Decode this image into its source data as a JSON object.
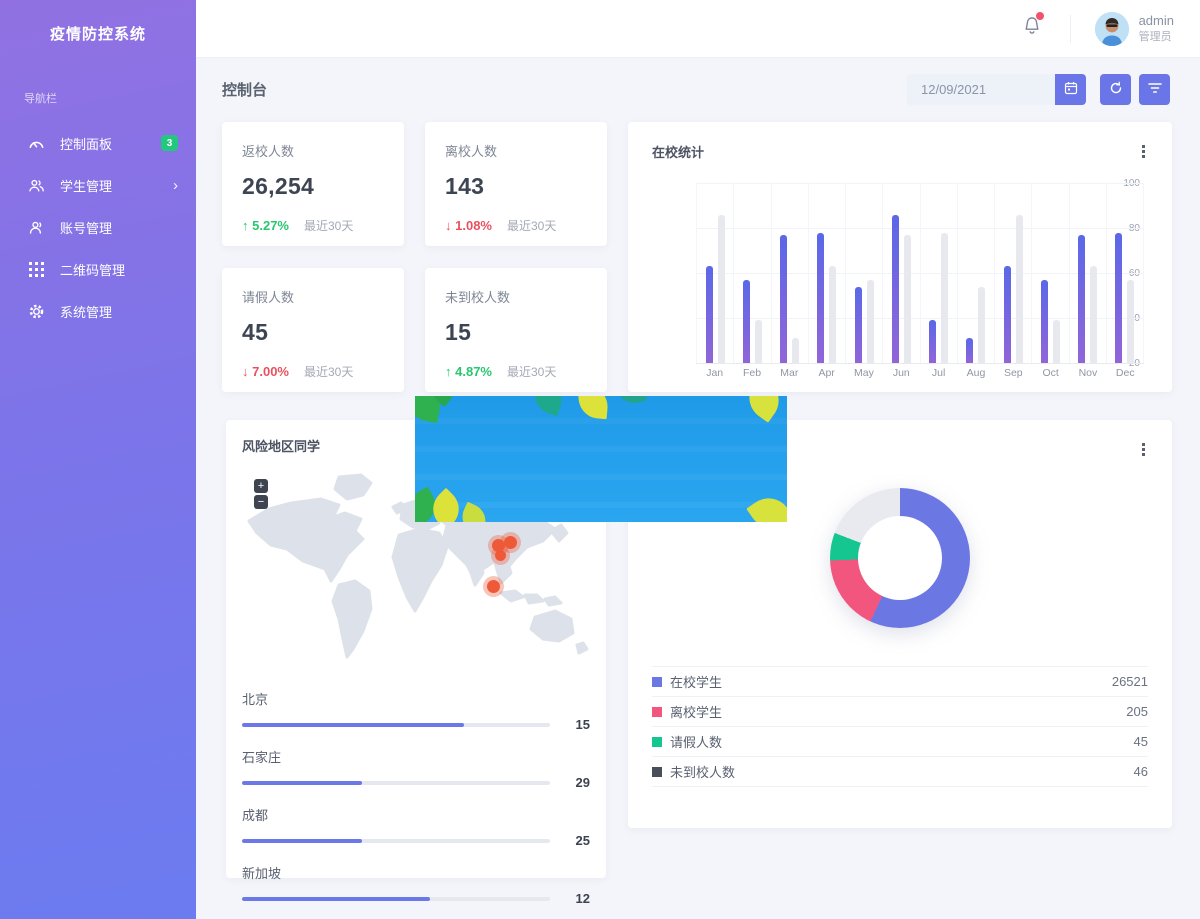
{
  "app": {
    "title": "疫情防控系统"
  },
  "sidebar": {
    "nav_label": "导航栏",
    "items": [
      {
        "label": "控制面板",
        "icon": "gauge-icon",
        "badge": "3",
        "active": true
      },
      {
        "label": "学生管理",
        "icon": "students-icon",
        "has_submenu": true,
        "chevron": "›"
      },
      {
        "label": "账号管理",
        "icon": "account-icon"
      },
      {
        "label": "二维码管理",
        "icon": "qrcode-icon"
      },
      {
        "label": "系统管理",
        "icon": "settings-icon"
      }
    ]
  },
  "header": {
    "username": "admin",
    "role": "管理员",
    "notification_dot": true
  },
  "toolbar": {
    "page_title": "控制台",
    "date_value": "12/09/2021"
  },
  "colors": {
    "accent": "#6a76e8",
    "sidebar_top": "#9171e2",
    "sidebar_bottom": "#6b7cf0",
    "positive": "#28c76f",
    "negative": "#ea5160",
    "badge_green": "#24c77e",
    "bar_purple_top": "#5a68e8",
    "bar_purple_bottom": "#9165d8",
    "bar_gray": "#e7e9ee",
    "marker_red": "#ee5a38",
    "banner_blue": "#219ceb",
    "map_land": "#dde2ea"
  },
  "stat_cards": [
    {
      "title": "返校人数",
      "value": "26,254",
      "arrow": "↑",
      "dir": "up",
      "trend": "5.27%",
      "period": "最近30天"
    },
    {
      "title": "离校人数",
      "value": "143",
      "arrow": "↓",
      "dir": "down",
      "trend": "1.08%",
      "period": "最近30天"
    },
    {
      "title": "请假人数",
      "value": "45",
      "arrow": "↓",
      "dir": "down",
      "trend": "7.00%",
      "period": "最近30天"
    },
    {
      "title": "未到校人数",
      "value": "15",
      "arrow": "↑",
      "dir": "up",
      "trend": "4.87%",
      "period": "最近30天"
    }
  ],
  "chart_data": [
    {
      "id": "attendance-bars",
      "type": "bar",
      "title": "在校统计",
      "categories": [
        "Jan",
        "Feb",
        "Mar",
        "Apr",
        "May",
        "Jun",
        "Jul",
        "Aug",
        "Sep",
        "Oct",
        "Nov",
        "Dec"
      ],
      "series": [
        {
          "name": "series-purple",
          "color_top": "#5a68e8",
          "color_bottom": "#9165d8",
          "values": [
            63,
            57,
            77,
            78,
            54,
            86,
            39,
            31,
            63,
            57,
            77,
            78
          ]
        },
        {
          "name": "series-gray",
          "color": "#e7e9ee",
          "values": [
            86,
            39,
            31,
            63,
            57,
            77,
            78,
            54,
            86,
            39,
            63,
            57
          ]
        }
      ],
      "ylim": [
        20,
        100
      ],
      "yticks": [
        100,
        80,
        60,
        40,
        20
      ],
      "grid": true,
      "legend": "none"
    },
    {
      "id": "risk-cities",
      "type": "bar",
      "orientation": "horizontal",
      "title": "风险地区同学",
      "items": [
        {
          "label": "北京",
          "value": 15,
          "fill_pct": 72
        },
        {
          "label": "石家庄",
          "value": 29,
          "fill_pct": 39
        },
        {
          "label": "成都",
          "value": 25,
          "fill_pct": 39
        },
        {
          "label": "新加坡",
          "value": 12,
          "fill_pct": 61
        }
      ]
    },
    {
      "id": "students-donut",
      "type": "pie",
      "segments": [
        {
          "label": "在校学生",
          "value": 26521,
          "arc_deg": 205,
          "slice_color": "#6b77e3",
          "legend_color": "#6b77e3"
        },
        {
          "label": "离校学生",
          "value": 205,
          "arc_deg": 63,
          "slice_color": "#f2557e",
          "legend_color": "#f2557e"
        },
        {
          "label": "请假人数",
          "value": 45,
          "arc_deg": 23,
          "slice_color": "#16c690",
          "legend_color": "#16c690"
        },
        {
          "label": "未到校人数",
          "value": 46,
          "arc_deg": 69,
          "slice_color": "#e8eaef",
          "legend_color": "#4a4e59"
        }
      ]
    }
  ],
  "map_controls": {
    "zoom_in": "+",
    "zoom_out": "−"
  }
}
